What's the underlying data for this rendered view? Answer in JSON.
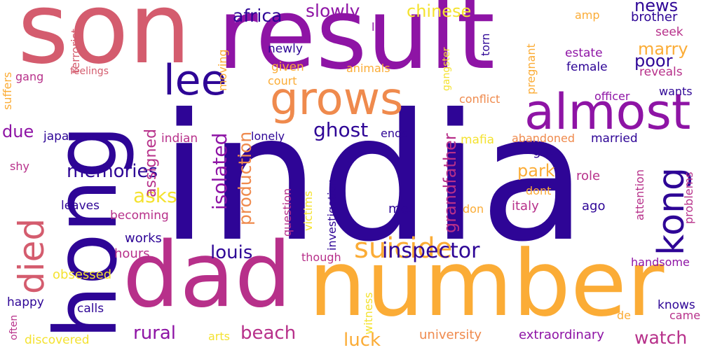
{
  "palette": {
    "dark_indigo": "#2e0596",
    "purple": "#8e14a5",
    "magenta": "#b7308a",
    "rose": "#d45c6e",
    "orange": "#ef8a4d",
    "amber": "#fbac36",
    "yellow": "#f4e230"
  },
  "words": [
    {
      "text": "india",
      "color": "#2e0596"
    },
    {
      "text": "son",
      "color": "#d45c6e"
    },
    {
      "text": "result",
      "color": "#8e14a5"
    },
    {
      "text": "dad",
      "color": "#b7308a"
    },
    {
      "text": "number",
      "color": "#fbac36"
    },
    {
      "text": "hong",
      "color": "#2e0596"
    },
    {
      "text": "almost",
      "color": "#8e14a5"
    },
    {
      "text": "grows",
      "color": "#ef8a4d"
    },
    {
      "text": "lee",
      "color": "#2e0596"
    },
    {
      "text": "kong",
      "color": "#2e0596"
    },
    {
      "text": "died",
      "color": "#d45c6e"
    },
    {
      "text": "suicide",
      "color": "#fbac36"
    },
    {
      "text": "inspector",
      "color": "#2e0596"
    },
    {
      "text": "memories",
      "color": "#2e0596"
    },
    {
      "text": "ghost",
      "color": "#2e0596"
    },
    {
      "text": "africa",
      "color": "#2e0596"
    },
    {
      "text": "slowly",
      "color": "#8e14a5"
    },
    {
      "text": "chinese",
      "color": "#f4e230"
    },
    {
      "text": "news",
      "color": "#2e0596"
    },
    {
      "text": "brother",
      "color": "#2e0596"
    },
    {
      "text": "marry",
      "color": "#fbac36"
    },
    {
      "text": "poor",
      "color": "#2e0596"
    },
    {
      "text": "louis",
      "color": "#2e0596"
    },
    {
      "text": "beach",
      "color": "#b7308a"
    },
    {
      "text": "rural",
      "color": "#8e14a5"
    },
    {
      "text": "luck",
      "color": "#fbac36"
    },
    {
      "text": "watch",
      "color": "#b7308a"
    },
    {
      "text": "park",
      "color": "#fbac36"
    },
    {
      "text": "asks",
      "color": "#f4e230"
    },
    {
      "text": "due",
      "color": "#8e14a5"
    },
    {
      "text": "isolated",
      "color": "#8e14a5"
    },
    {
      "text": "production",
      "color": "#ef8a4d"
    },
    {
      "text": "assigned",
      "color": "#b7308a"
    },
    {
      "text": "grandfather",
      "color": "#b7308a"
    },
    {
      "text": "university",
      "color": "#ef8a4d"
    },
    {
      "text": "extraordinary",
      "color": "#8e14a5"
    },
    {
      "text": "japanese",
      "color": "#2e0596"
    },
    {
      "text": "indian",
      "color": "#b7308a"
    },
    {
      "text": "lonely",
      "color": "#2e0596"
    },
    {
      "text": "ends",
      "color": "#2e0596"
    },
    {
      "text": "abandoned",
      "color": "#ef8a4d"
    },
    {
      "text": "married",
      "color": "#2e0596"
    },
    {
      "text": "got",
      "color": "#2e0596"
    },
    {
      "text": "role",
      "color": "#b7308a"
    },
    {
      "text": "dont",
      "color": "#fbac36"
    },
    {
      "text": "italy",
      "color": "#b7308a"
    },
    {
      "text": "ago",
      "color": "#2e0596"
    },
    {
      "text": "don",
      "color": "#fbac36"
    },
    {
      "text": "met",
      "color": "#2e0596"
    },
    {
      "text": "leaves",
      "color": "#2e0596"
    },
    {
      "text": "becoming",
      "color": "#b7308a"
    },
    {
      "text": "works",
      "color": "#2e0596"
    },
    {
      "text": "hours",
      "color": "#b7308a"
    },
    {
      "text": "obsessed",
      "color": "#f4e230"
    },
    {
      "text": "happy",
      "color": "#2e0596"
    },
    {
      "text": "calls",
      "color": "#2e0596"
    },
    {
      "text": "discovered",
      "color": "#f4e230"
    },
    {
      "text": "arts",
      "color": "#f4e230"
    },
    {
      "text": "though",
      "color": "#b7308a"
    },
    {
      "text": "knows",
      "color": "#2e0596"
    },
    {
      "text": "camera",
      "color": "#b7308a"
    },
    {
      "text": "de",
      "color": "#fbac36"
    },
    {
      "text": "handsome",
      "color": "#8e14a5"
    },
    {
      "text": "officer",
      "color": "#8e14a5"
    },
    {
      "text": "wants",
      "color": "#2e0596"
    },
    {
      "text": "reveals",
      "color": "#b7308a"
    },
    {
      "text": "female",
      "color": "#2e0596"
    },
    {
      "text": "estate",
      "color": "#8e14a5"
    },
    {
      "text": "seek",
      "color": "#b7308a"
    },
    {
      "text": "amp",
      "color": "#fbac36"
    },
    {
      "text": "conflict",
      "color": "#ef8a4d"
    },
    {
      "text": "mafia",
      "color": "#f4e230"
    },
    {
      "text": "newly",
      "color": "#2e0596"
    },
    {
      "text": "given",
      "color": "#fbac36"
    },
    {
      "text": "court",
      "color": "#fbac36"
    },
    {
      "text": "animals",
      "color": "#fbac36"
    },
    {
      "text": "la",
      "color": "#8e14a5"
    },
    {
      "text": "gang",
      "color": "#b7308a"
    },
    {
      "text": "feelings",
      "color": "#d45c6e"
    },
    {
      "text": "shy",
      "color": "#b7308a"
    },
    {
      "text": "question",
      "color": "#b7308a"
    },
    {
      "text": "victims",
      "color": "#f4e230"
    },
    {
      "text": "investigation",
      "color": "#2e0596"
    },
    {
      "text": "witness",
      "color": "#f4e230"
    },
    {
      "text": "often",
      "color": "#b7308a"
    },
    {
      "text": "suffers",
      "color": "#fbac36"
    },
    {
      "text": "terrorist",
      "color": "#d45c6e"
    },
    {
      "text": "moving",
      "color": "#fbac36"
    },
    {
      "text": "gangster",
      "color": "#f4e230"
    },
    {
      "text": "torn",
      "color": "#2e0596"
    },
    {
      "text": "pregnant",
      "color": "#fbac36"
    },
    {
      "text": "attention",
      "color": "#b7308a"
    },
    {
      "text": "problems",
      "color": "#b7308a"
    }
  ]
}
